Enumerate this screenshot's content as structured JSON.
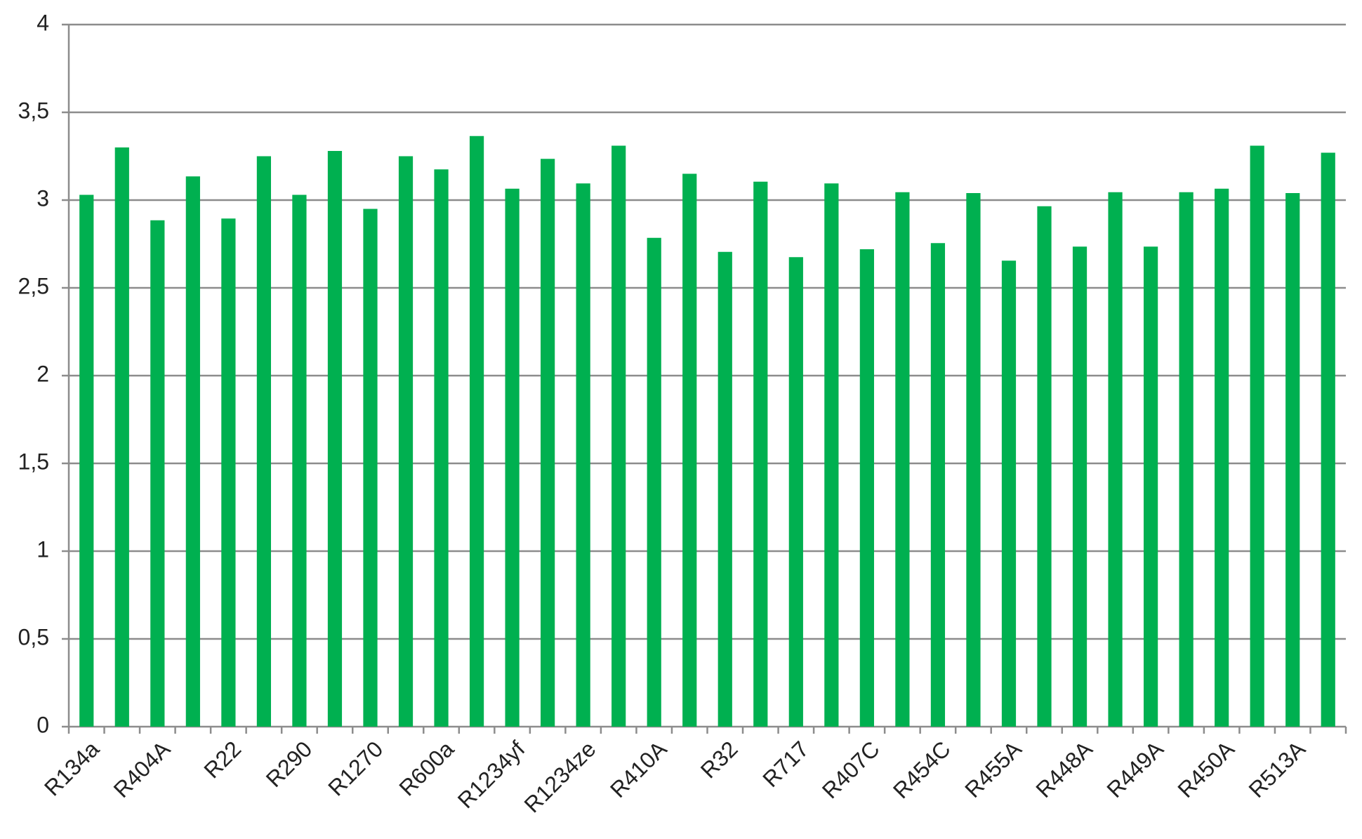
{
  "chart_data": {
    "type": "bar",
    "categories": [
      "R134a",
      null,
      "R404A",
      null,
      "R22",
      null,
      "R290",
      null,
      "R1270",
      null,
      "R600a",
      null,
      "R1234yf",
      null,
      "R1234ze",
      null,
      "R410A",
      null,
      "R32",
      null,
      "R717",
      null,
      "R407C",
      null,
      "R454C",
      null,
      "R455A",
      null,
      "R448A",
      null,
      "R449A",
      null,
      "R450A",
      null,
      "R513A",
      null
    ],
    "values": [
      3.03,
      3.3,
      2.885,
      3.135,
      2.895,
      3.25,
      3.03,
      3.28,
      2.95,
      3.25,
      3.175,
      3.365,
      3.065,
      3.235,
      3.095,
      3.31,
      2.785,
      3.15,
      2.705,
      3.105,
      2.675,
      3.095,
      2.72,
      3.045,
      2.755,
      3.04,
      2.655,
      2.965,
      2.735,
      3.045,
      2.735,
      3.045,
      3.065,
      3.31,
      3.04,
      3.27
    ],
    "color": "#00b050",
    "ylim": [
      0,
      4
    ],
    "yticks": [
      0,
      {
        "value": 0.5,
        "label": "0,5"
      },
      1,
      {
        "value": 1.5,
        "label": "1,5"
      },
      2,
      {
        "value": 2.5,
        "label": "2,5"
      },
      3,
      {
        "value": 3.5,
        "label": "3,5"
      },
      4
    ],
    "grid": true
  }
}
